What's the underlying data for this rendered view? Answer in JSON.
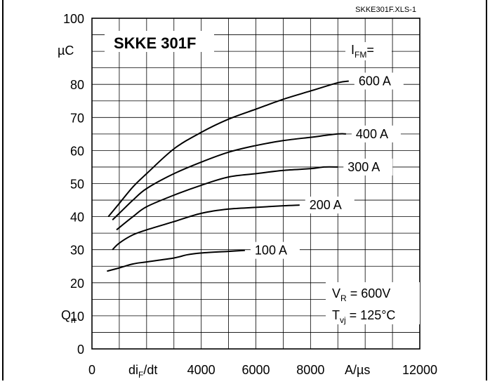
{
  "file_label": "SKKE301F.XLS-1",
  "chart_data": {
    "type": "line",
    "title": "SKKE 301F",
    "x": {
      "range": [
        0,
        12000
      ],
      "tick_values": [
        0,
        4000,
        6000,
        8000,
        12000
      ],
      "tick_labels": [
        "0",
        "4000",
        "6000",
        "8000",
        "12000"
      ],
      "label_var": "di",
      "label_sub": "F",
      "label_rest": "/dt",
      "unit": "A/µs"
    },
    "y": {
      "range": [
        0,
        100
      ],
      "tick_values": [
        0,
        10,
        20,
        30,
        40,
        50,
        60,
        70,
        80,
        100
      ],
      "tick_labels": [
        "0",
        "10",
        "20",
        "30",
        "40",
        "50",
        "60",
        "70",
        "80",
        "100"
      ],
      "unit": "µC",
      "label_var": "Q",
      "label_sub": "rr"
    },
    "grid": true,
    "legend_title_var": "I",
    "legend_title_sub": "FM",
    "legend_title_rest": "=",
    "series": [
      {
        "name": "600 A",
        "x": [
          600,
          1000,
          1500,
          2000,
          3000,
          4000,
          5000,
          6000,
          7000,
          8000,
          9000,
          9400
        ],
        "y": [
          40,
          44,
          49,
          53,
          60.5,
          65.5,
          69.5,
          72.5,
          75.5,
          78,
          80.5,
          81
        ]
      },
      {
        "name": "400 A",
        "x": [
          750,
          1000,
          1500,
          2000,
          3000,
          4000,
          5000,
          6000,
          7000,
          8000,
          9000,
          9300
        ],
        "y": [
          39,
          41,
          45,
          48.5,
          53,
          56.5,
          59.5,
          61.5,
          63,
          64,
          65,
          65
        ]
      },
      {
        "name": "300 A",
        "x": [
          900,
          1500,
          2000,
          3000,
          4000,
          5000,
          6000,
          7000,
          8000,
          8500,
          9000
        ],
        "y": [
          36,
          40,
          43,
          46.5,
          49.5,
          52,
          53,
          54,
          54.5,
          55,
          55
        ]
      },
      {
        "name": "200 A",
        "x": [
          750,
          1000,
          1500,
          2000,
          3000,
          4000,
          5000,
          6000,
          7000,
          7600
        ],
        "y": [
          30,
          32,
          34.5,
          36,
          38.5,
          41,
          42.3,
          42.8,
          43.3,
          43.5
        ]
      },
      {
        "name": "100 A",
        "x": [
          550,
          1000,
          1500,
          2000,
          3000,
          3500,
          4000,
          5000,
          5600
        ],
        "y": [
          23.5,
          24.5,
          25.7,
          26.3,
          27.5,
          28.5,
          29,
          29.5,
          29.8
        ]
      }
    ],
    "conditions": {
      "vr_var": "V",
      "vr_sub": "R",
      "vr_rest": " = 600V",
      "tvj_var": "T",
      "tvj_sub": "vj",
      "tvj_rest": " = 125°C"
    }
  }
}
